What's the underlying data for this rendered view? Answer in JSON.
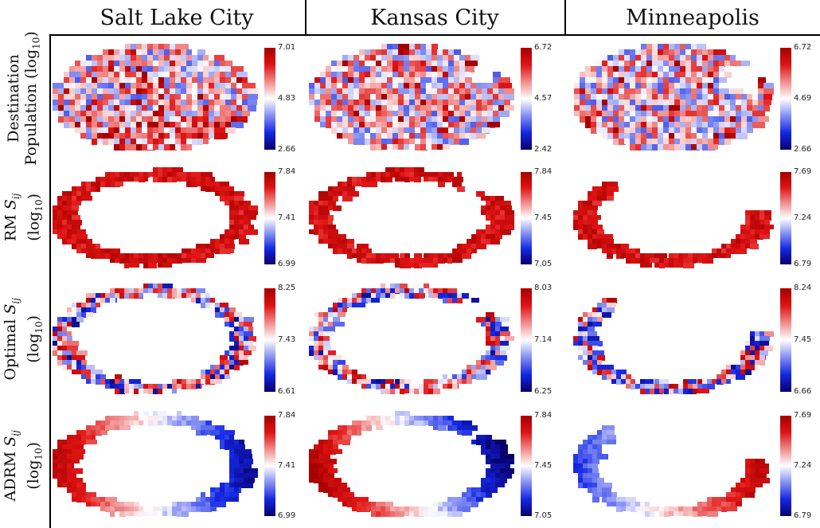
{
  "columns": [
    "Salt Lake City",
    "Kansas City",
    "Minneapolis"
  ],
  "rows": [
    {
      "label_lines": [
        "Destination",
        "Population (log",
        "10",
        ")"
      ],
      "kind": "population"
    },
    {
      "label_lines": [
        "RM ",
        "S",
        "ij",
        "(log",
        "10",
        ")"
      ],
      "kind": "rm"
    },
    {
      "label_lines": [
        "Optimal ",
        "S",
        "ij",
        "(log",
        "10",
        ")"
      ],
      "kind": "optimal"
    },
    {
      "label_lines": [
        "ADRM ",
        "S",
        "ij",
        "(log",
        "10",
        ")"
      ],
      "kind": "adrm"
    }
  ],
  "colorbars": [
    [
      [
        "7.01",
        "4.83",
        "2.66"
      ],
      [
        "6.72",
        "4.57",
        "2.42"
      ],
      [
        "6.72",
        "4.69",
        "2.66"
      ]
    ],
    [
      [
        "7.84",
        "7.41",
        "6.99"
      ],
      [
        "7.84",
        "7.45",
        "7.05"
      ],
      [
        "7.69",
        "7.24",
        "6.79"
      ]
    ],
    [
      [
        "8.25",
        "7.43",
        "6.61"
      ],
      [
        "8.03",
        "7.14",
        "6.25"
      ],
      [
        "8.24",
        "7.45",
        "6.66"
      ]
    ],
    [
      [
        "7.84",
        "7.41",
        "6.99"
      ],
      [
        "7.84",
        "7.45",
        "7.05"
      ],
      [
        "7.69",
        "7.24",
        "6.79"
      ]
    ]
  ],
  "colors": {
    "low": "#08006a",
    "mid": "#ffffff",
    "high": "#a50000"
  }
}
